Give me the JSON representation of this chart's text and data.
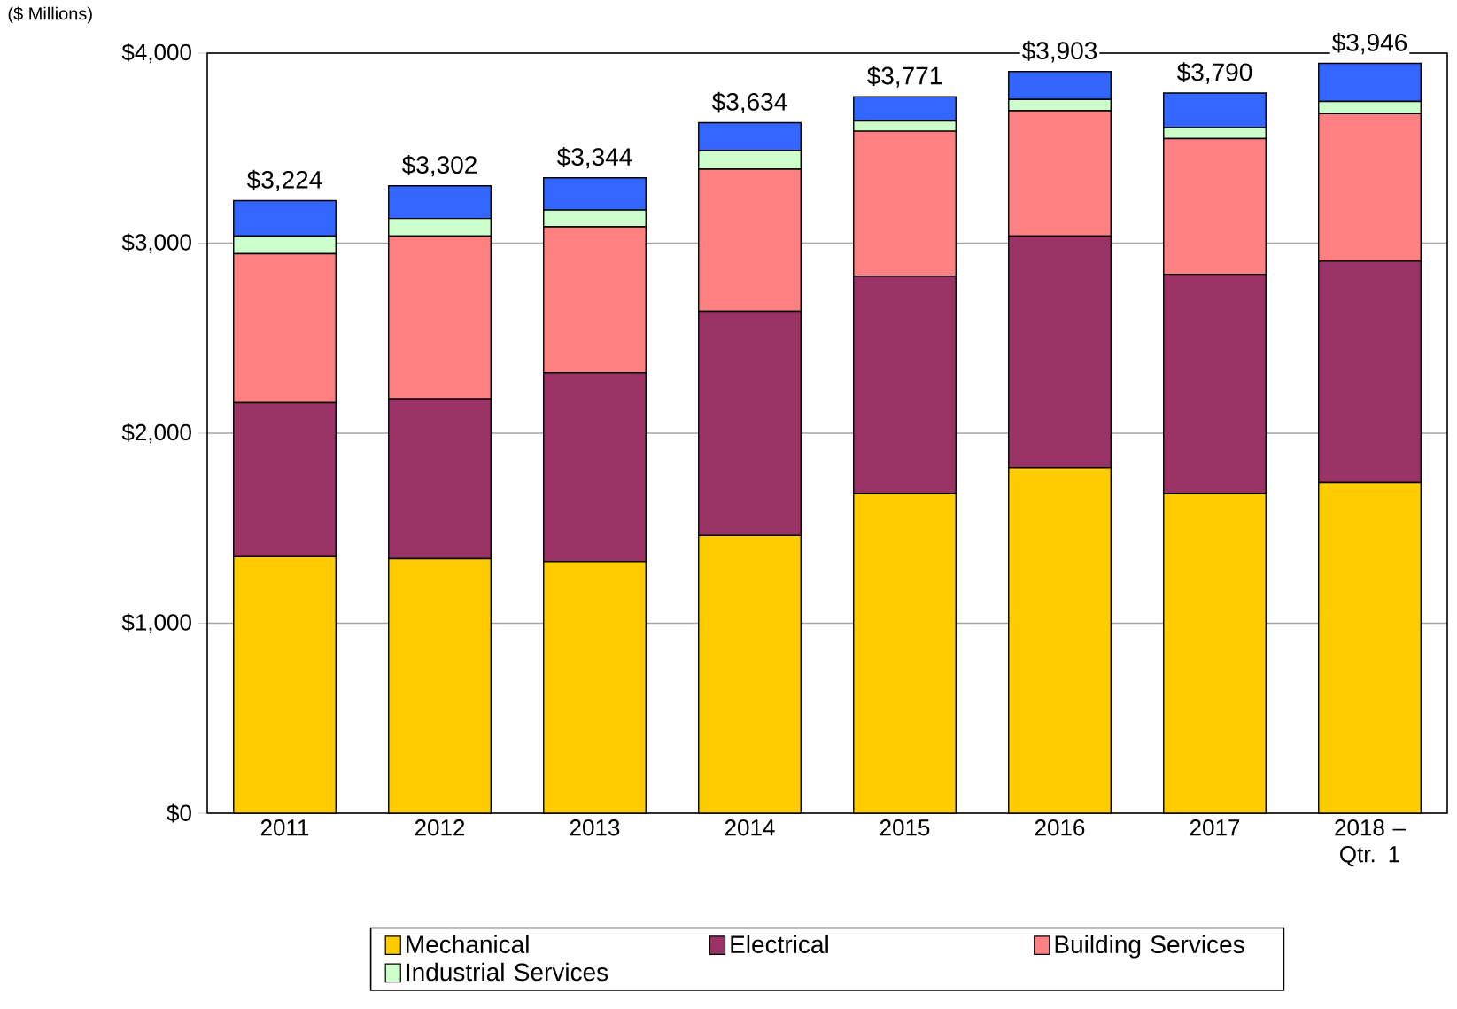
{
  "chart_data": {
    "type": "bar",
    "stacked": true,
    "ylabel": "($ Millions)",
    "categories": [
      "2011",
      "2012",
      "2013",
      "2014",
      "2015",
      "2016",
      "2017",
      "2018 – Qtr. 1"
    ],
    "series": [
      {
        "name": "Mechanical",
        "color": "#ffcc00",
        "values": [
          1350,
          1340,
          1325,
          1462,
          1682,
          1819,
          1682,
          1741
        ]
      },
      {
        "name": "Electrical",
        "color": "#993366",
        "values": [
          811,
          841,
          993,
          1179,
          1144,
          1218,
          1154,
          1164
        ]
      },
      {
        "name": "Building Services",
        "color": "#ff8080",
        "values": [
          783,
          856,
          768,
          748,
          763,
          660,
          714,
          777
        ]
      },
      {
        "name": "Industrial Services",
        "color": "#ccffcc",
        "values": [
          93,
          93,
          88,
          98,
          54,
          59,
          59,
          64
        ]
      },
      {
        "color": "#3366ff",
        "values": [
          187,
          172,
          170,
          147,
          128,
          147,
          181,
          200
        ]
      }
    ],
    "totals": [
      "$3,224",
      "$3,302",
      "$3,344",
      "$3,634",
      "$3,771",
      "$3,903",
      "$3,790",
      "$3,946"
    ],
    "ylim": [
      0,
      4000
    ],
    "yticks": [
      {
        "value": 0,
        "label": "$0"
      },
      {
        "value": 1000,
        "label": "$1,000"
      },
      {
        "value": 2000,
        "label": "$2,000"
      },
      {
        "value": 3000,
        "label": "$3,000"
      },
      {
        "value": 4000,
        "label": "$4,000"
      }
    ],
    "grid": "y",
    "legend": "bottom"
  }
}
